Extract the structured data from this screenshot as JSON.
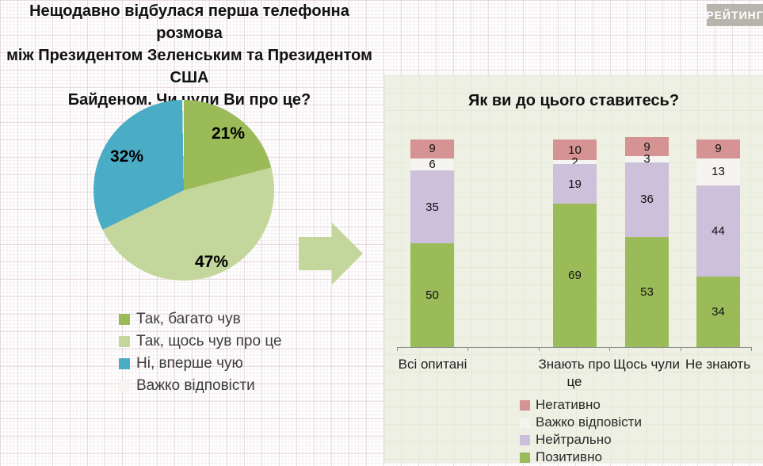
{
  "header": {
    "title_lines": [
      "Нещодавно відбулася перша телефонна розмова",
      "між Президентом Зеленським та Президентом США",
      "Байденом. Чи чули Ви про це?"
    ],
    "logo": "РЕЙТИНГ"
  },
  "colors": {
    "green_dark": "#9BBB59",
    "green_light": "#C3D69B",
    "blue": "#4BACC6",
    "white": "#F5F4F1",
    "lavender": "#CCC0DA",
    "pink": "#D59493",
    "panel_bg": "#EDF0E2",
    "arrow": "#C3D69B"
  },
  "chart_data": [
    {
      "type": "pie",
      "question": "Нещодавно відбулася перша телефонна розмова між Президентом Зеленським та Президентом США Байденом. Чи чули Ви про це?",
      "slices": [
        {
          "label": "Так, багато чув",
          "value": 21,
          "display": "21%",
          "color_key": "green_dark"
        },
        {
          "label": "Так, щось чув про це",
          "value": 47,
          "display": "47%",
          "color_key": "green_light"
        },
        {
          "label": "Ні, вперше чую",
          "value": 32,
          "display": "32%",
          "color_key": "blue"
        },
        {
          "label": "Важко відповісти",
          "value": 0,
          "display": "",
          "color_key": "white"
        }
      ],
      "legend_position": "bottom-left"
    },
    {
      "type": "bar",
      "stacked": true,
      "title": "Як ви до цього ставитесь?",
      "categories": [
        "Всі опитані",
        "Знають про це",
        "Щось чули",
        "Не знають"
      ],
      "series": [
        {
          "name": "Позитивно",
          "color_key": "green_dark",
          "values": [
            50,
            69,
            53,
            34
          ]
        },
        {
          "name": "Нейтрально",
          "color_key": "lavender",
          "values": [
            35,
            19,
            36,
            44
          ]
        },
        {
          "name": "Важко відповісти",
          "color_key": "white",
          "values": [
            6,
            2,
            3,
            13
          ]
        },
        {
          "name": "Негативно",
          "color_key": "pink",
          "values": [
            9,
            10,
            9,
            9
          ]
        }
      ],
      "ylim": [
        0,
        100
      ],
      "grid": false,
      "legend_position": "bottom"
    }
  ]
}
